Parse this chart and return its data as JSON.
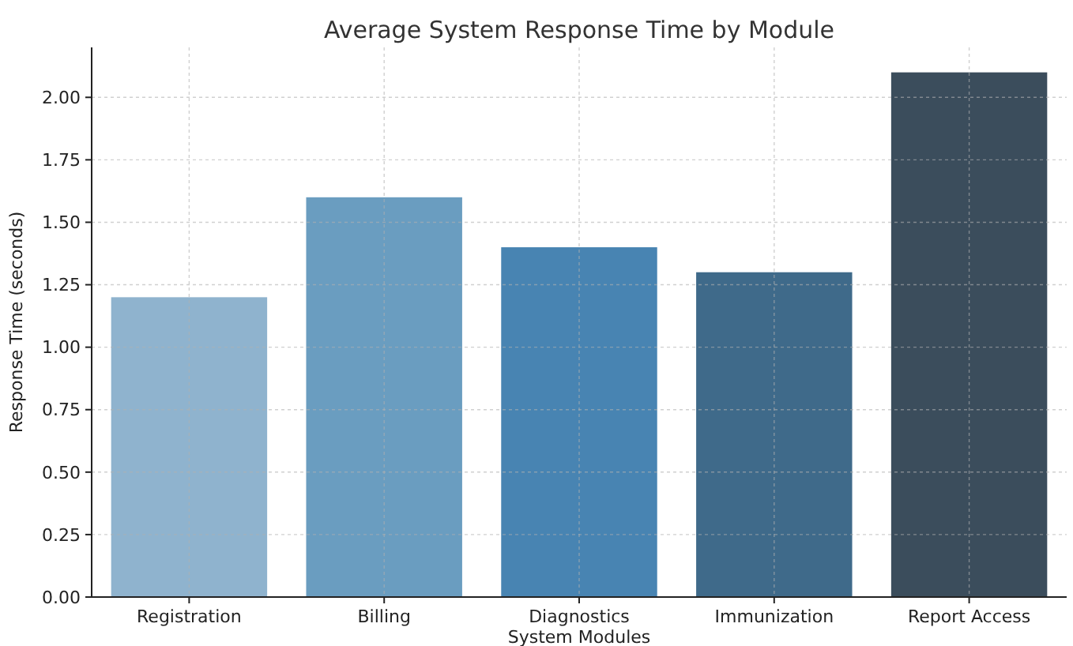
{
  "chart_data": {
    "type": "bar",
    "title": "Average System Response Time by Module",
    "xlabel": "System Modules",
    "ylabel": "Response Time (seconds)",
    "categories": [
      "Registration",
      "Billing",
      "Diagnostics",
      "Immunization",
      "Report Access"
    ],
    "values": [
      1.2,
      1.6,
      1.4,
      1.3,
      2.1
    ],
    "colors": [
      "#8fb3ce",
      "#6a9dc0",
      "#4884b2",
      "#3f6a8a",
      "#3b4d5c"
    ],
    "ylim": [
      0,
      2.2
    ],
    "yticks": [
      {
        "value": 0,
        "label": "0.00"
      },
      {
        "value": 0.25,
        "label": "0.25"
      },
      {
        "value": 0.5,
        "label": "0.50"
      },
      {
        "value": 0.75,
        "label": "0.75"
      },
      {
        "value": 1,
        "label": "1.00"
      },
      {
        "value": 1.25,
        "label": "1.25"
      },
      {
        "value": 1.5,
        "label": "1.50"
      },
      {
        "value": 1.75,
        "label": "1.75"
      },
      {
        "value": 2,
        "label": "2.00"
      }
    ],
    "grid": true
  }
}
